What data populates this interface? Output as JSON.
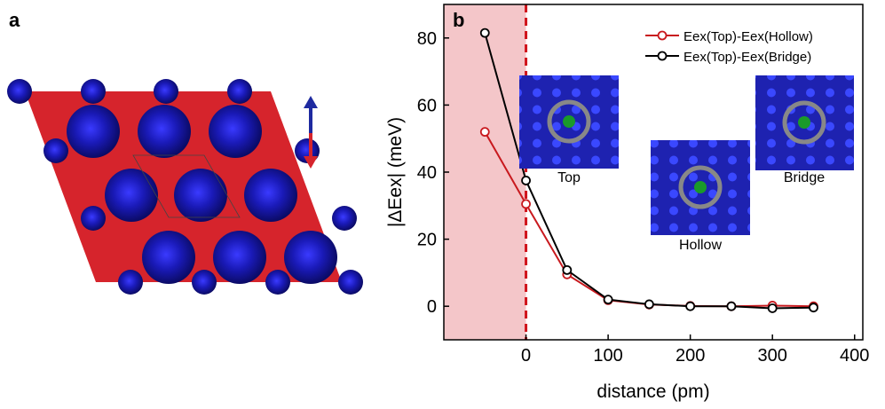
{
  "chart_data": {
    "type": "line",
    "panel_labels": [
      "a",
      "b"
    ],
    "x_label": "distance (pm)",
    "y_label": "|ΔEex| (meV)",
    "xlim": [
      -100,
      410
    ],
    "ylim": [
      -10,
      90
    ],
    "xticks": [
      0,
      100,
      200,
      300,
      400
    ],
    "yticks": [
      0,
      20,
      40,
      60,
      80
    ],
    "x": [
      -50,
      0,
      50,
      100,
      150,
      200,
      250,
      300,
      350
    ],
    "series": [
      {
        "name": "Eex(Top)-Eex(Hollow)",
        "color": "#c8191e",
        "values": [
          52,
          30.5,
          9.5,
          1.8,
          0.5,
          0.1,
          0,
          0.2,
          0
        ]
      },
      {
        "name": "Eex(Top)-Eex(Bridge)",
        "color": "#000000",
        "values": [
          81.5,
          37.5,
          10.8,
          2,
          0.6,
          0,
          0,
          -0.6,
          -0.4
        ]
      }
    ],
    "shaded_xrange": [
      -100,
      0
    ],
    "shade_color": "#f4c6c9",
    "vline": 0,
    "vline_color": "#d0141c",
    "annotations": [
      "Top",
      "Hollow",
      "Bridge"
    ]
  }
}
